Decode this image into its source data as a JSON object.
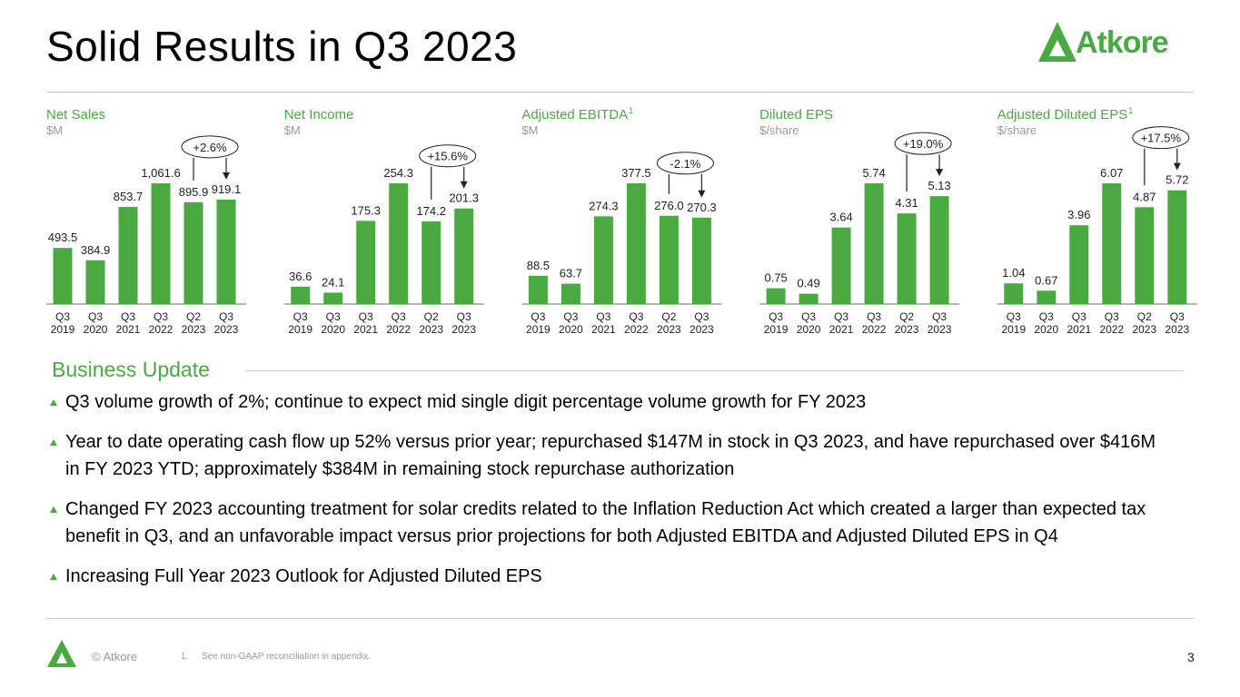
{
  "header": {
    "title": "Solid Results in Q3 2023",
    "logo": "Atkore"
  },
  "chart_data": [
    {
      "type": "bar",
      "title": "Net Sales",
      "subtitle": "$M",
      "color": "#4aa941",
      "categories": [
        "Q3 2019",
        "Q3 2020",
        "Q3 2021",
        "Q3 2022",
        "Q2 2023",
        "Q3 2023"
      ],
      "values": [
        493.5,
        384.9,
        853.7,
        1061.6,
        895.9,
        919.1
      ],
      "value_labels": [
        "493.5",
        "384.9",
        "853.7",
        "1,061.6",
        "895.9",
        "919.1"
      ],
      "annotation": "+2.6%"
    },
    {
      "type": "bar",
      "title": "Net Income",
      "subtitle": "$M",
      "color": "#4aa941",
      "categories": [
        "Q3 2019",
        "Q3 2020",
        "Q3 2021",
        "Q3 2022",
        "Q2 2023",
        "Q3 2023"
      ],
      "values": [
        36.6,
        24.1,
        175.3,
        254.3,
        174.2,
        201.3
      ],
      "value_labels": [
        "36.6",
        "24.1",
        "175.3",
        "254.3",
        "174.2",
        "201.3"
      ],
      "annotation": "+15.6%"
    },
    {
      "type": "bar",
      "title": "Adjusted EBITDA",
      "title_note": "1",
      "subtitle": "$M",
      "color": "#4aa941",
      "categories": [
        "Q3 2019",
        "Q3 2020",
        "Q3 2021",
        "Q3 2022",
        "Q2 2023",
        "Q3 2023"
      ],
      "values": [
        88.5,
        63.7,
        274.3,
        377.5,
        276.0,
        270.3
      ],
      "value_labels": [
        "88.5",
        "63.7",
        "274.3",
        "377.5",
        "276.0",
        "270.3"
      ],
      "annotation": "-2.1%"
    },
    {
      "type": "bar",
      "title": "Diluted EPS",
      "subtitle": "$/share",
      "color": "#4aa941",
      "categories": [
        "Q3 2019",
        "Q3 2020",
        "Q3 2021",
        "Q3 2022",
        "Q2 2023",
        "Q3 2023"
      ],
      "values": [
        0.75,
        0.49,
        3.64,
        5.74,
        4.31,
        5.13
      ],
      "value_labels": [
        "0.75",
        "0.49",
        "3.64",
        "5.74",
        "4.31",
        "5.13"
      ],
      "annotation": "+19.0%"
    },
    {
      "type": "bar",
      "title": "Adjusted Diluted EPS",
      "title_note": "1",
      "subtitle": "$/share",
      "color": "#4aa941",
      "categories": [
        "Q3 2019",
        "Q3 2020",
        "Q3 2021",
        "Q3 2022",
        "Q2 2023",
        "Q3 2023"
      ],
      "values": [
        1.04,
        0.67,
        3.96,
        6.07,
        4.87,
        5.72
      ],
      "value_labels": [
        "1.04",
        "0.67",
        "3.96",
        "6.07",
        "4.87",
        "5.72"
      ],
      "annotation": "+17.5%"
    }
  ],
  "section": {
    "title": "Business Update",
    "bullets": [
      "Q3 volume growth of 2%; continue to expect mid single digit percentage volume growth for FY 2023",
      "Year to date operating cash flow up 52% versus prior year; repurchased $147M in stock in Q3 2023, and have repurchased over $416M in FY 2023 YTD; approximately $384M in remaining stock repurchase authorization",
      "Changed FY 2023 accounting treatment for solar credits related to the Inflation Reduction Act which created a larger than expected tax benefit in Q3, and an unfavorable impact versus prior projections for both Adjusted EBITDA and Adjusted Diluted EPS in Q4",
      "Increasing Full Year 2023 Outlook for Adjusted Diluted EPS"
    ]
  },
  "footer": {
    "copyright": "© Atkore",
    "footnote_number": "1.",
    "footnote": "See non-GAAP reconciliation in appendix.",
    "page": "3"
  }
}
